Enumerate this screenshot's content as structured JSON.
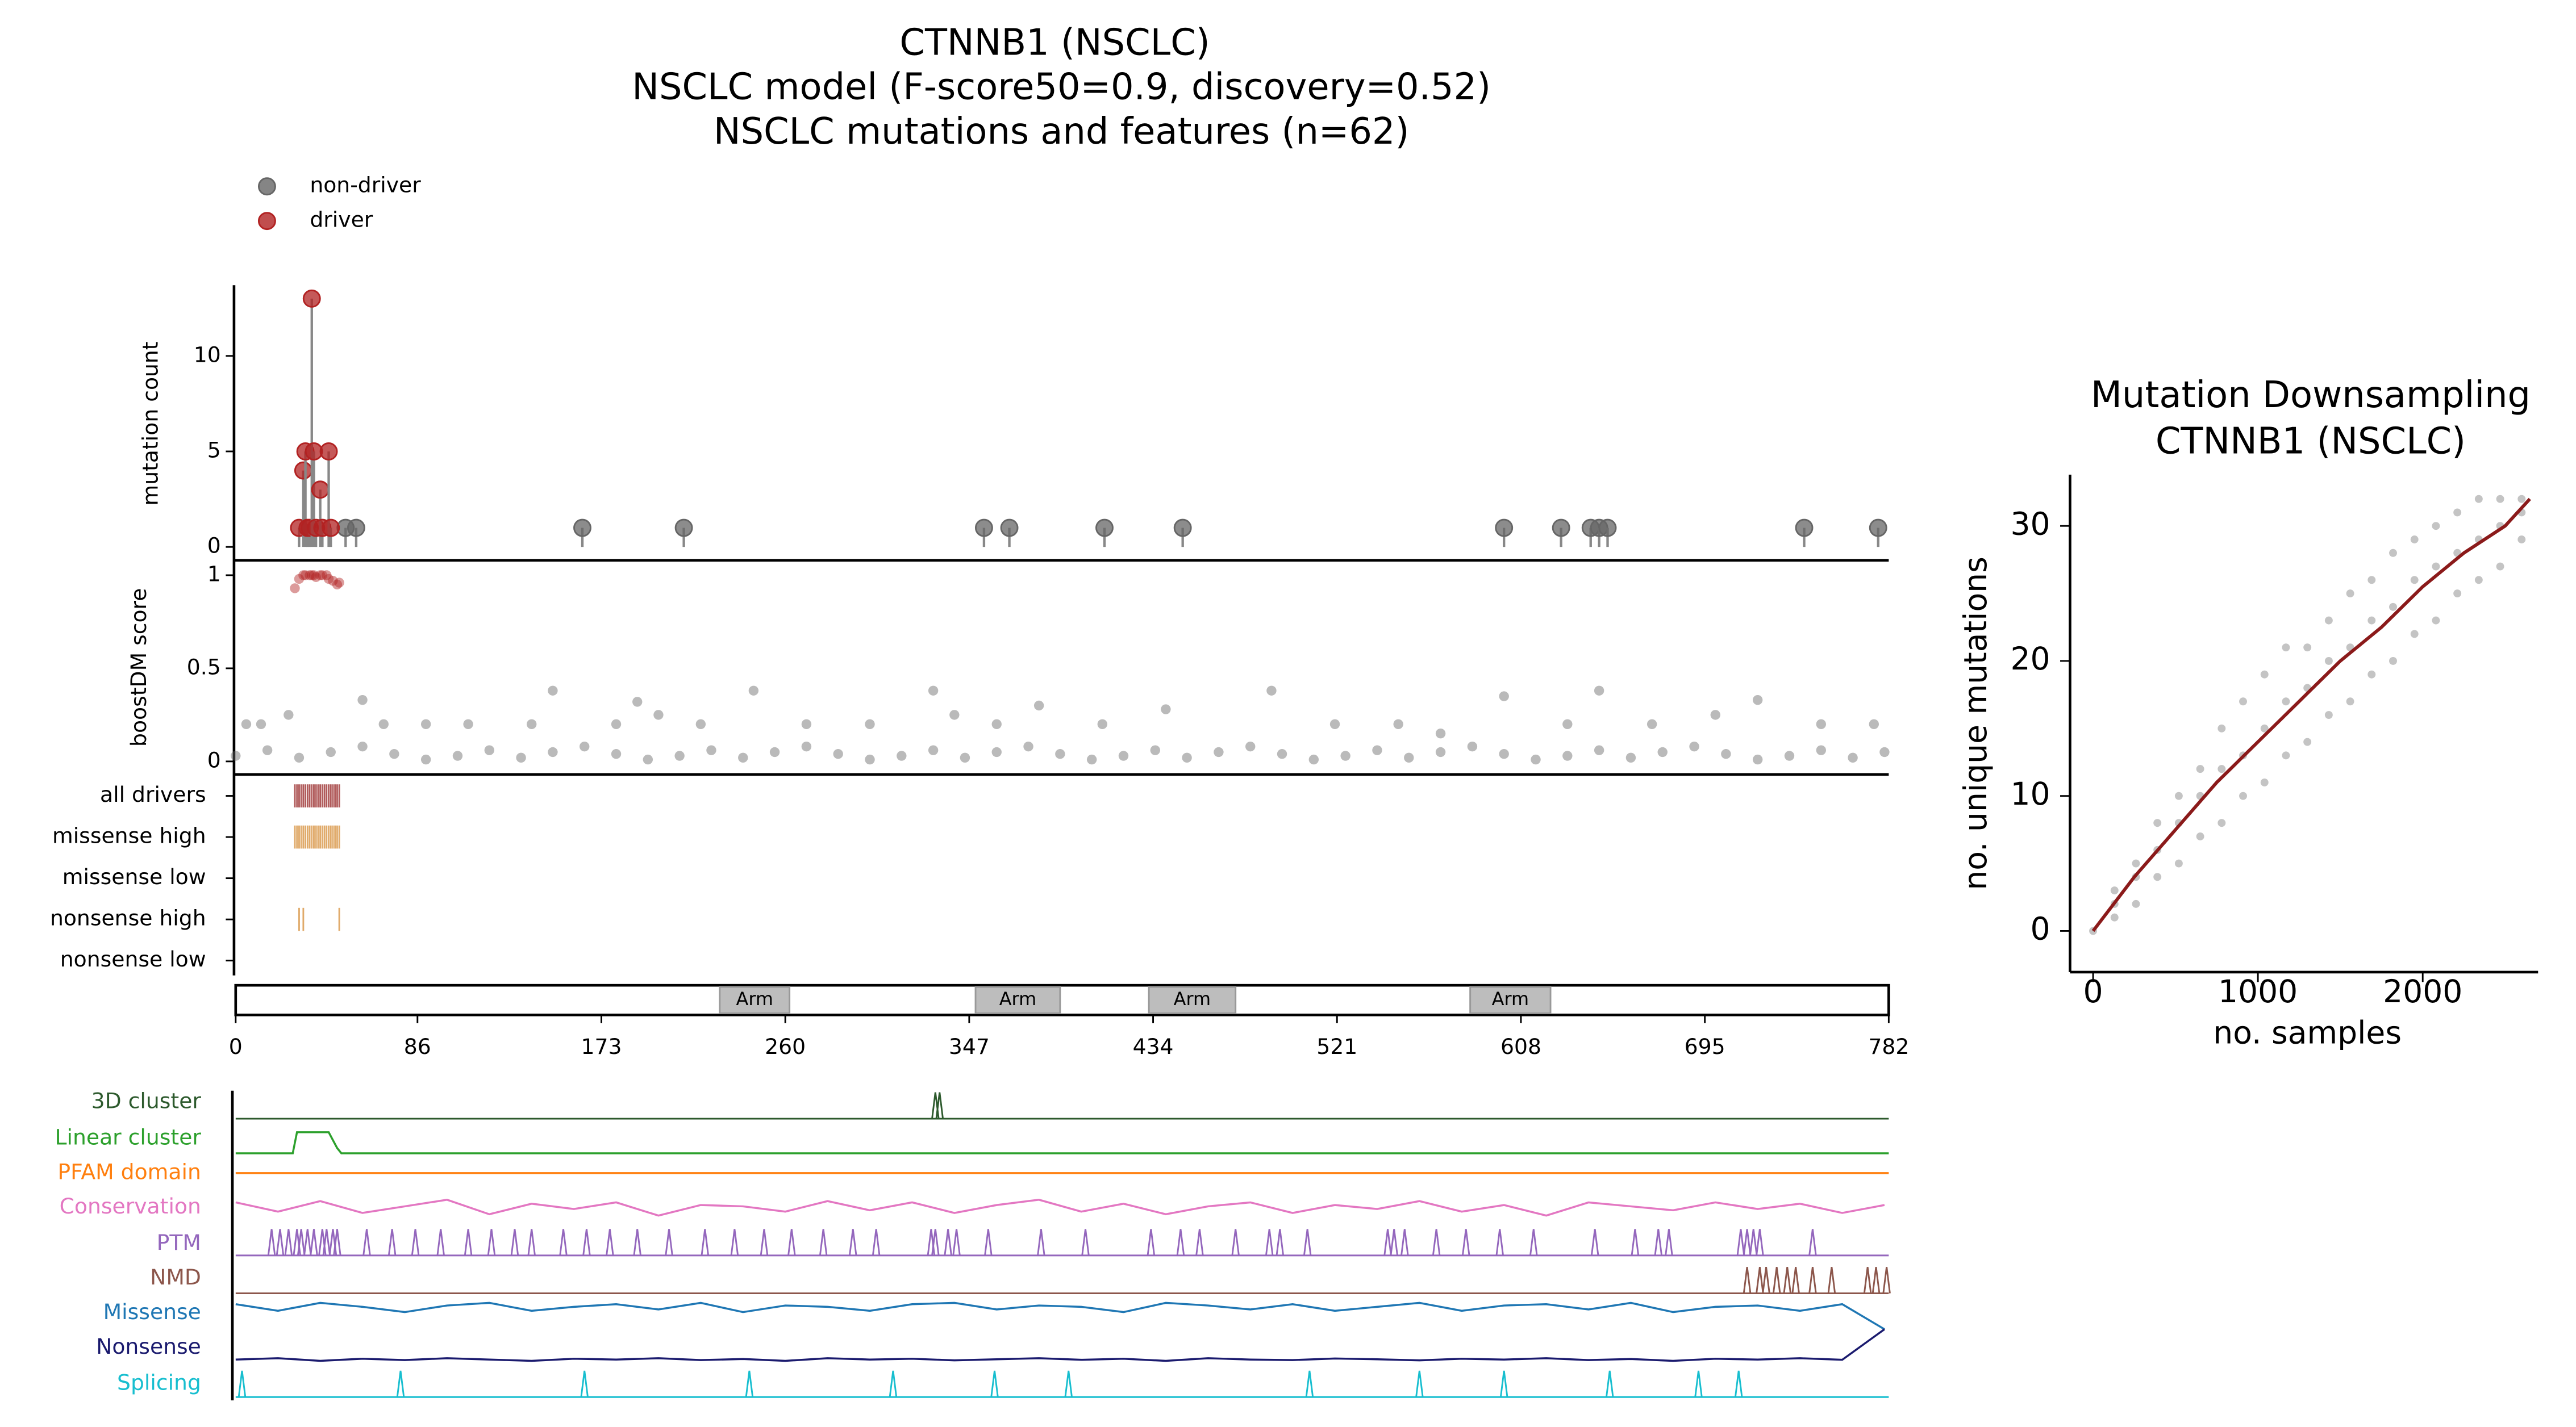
{
  "chart_data": [
    {
      "type": "lollipop",
      "title": [
        "CTNNB1 (NSCLC)",
        "NSCLC model (F-score50=0.9, discovery=0.52)",
        "NSCLC mutations and features (n=62)"
      ],
      "ylabel": "mutation count",
      "ylim": [
        -0.7,
        13.7
      ],
      "yticks": [
        0,
        5,
        10
      ],
      "series": [
        {
          "name": "non-driver",
          "color": "#666666",
          "x": [
            52,
            57,
            164,
            212,
            354,
            366,
            411,
            448,
            600,
            627,
            641,
            645,
            649,
            742,
            777
          ],
          "values": [
            1,
            1,
            1,
            1,
            1,
            1,
            1,
            1,
            1,
            1,
            1,
            1,
            1,
            1,
            1
          ]
        },
        {
          "name": "driver",
          "color": "#b22222",
          "x": [
            30,
            32,
            33,
            34,
            35,
            36,
            37,
            38,
            40,
            41,
            44,
            45
          ],
          "values": [
            1,
            4,
            5,
            1,
            1,
            13,
            5,
            1,
            3,
            1,
            5,
            1
          ]
        }
      ]
    },
    {
      "type": "scatter",
      "ylabel": "boostDM score",
      "ylim": [
        -0.07,
        1.08
      ],
      "yticks": [
        0,
        0.5,
        1
      ],
      "series": [
        {
          "color": "#666666",
          "x": [
            0,
            15,
            30,
            45,
            60,
            75,
            90,
            105,
            120,
            135,
            150,
            165,
            180,
            195,
            210,
            225,
            240,
            255,
            270,
            285,
            300,
            315,
            330,
            345,
            360,
            375,
            390,
            405,
            420,
            435,
            450,
            465,
            480,
            495,
            510,
            525,
            540,
            555,
            570,
            585,
            600,
            615,
            630,
            645,
            660,
            675,
            690,
            705,
            720,
            735,
            750,
            765,
            780
          ],
          "values": [
            0.03,
            0.06,
            0.02,
            0.05,
            0.08,
            0.04,
            0.01,
            0.03,
            0.06,
            0.02,
            0.05,
            0.08,
            0.04,
            0.01,
            0.03,
            0.06,
            0.02,
            0.05,
            0.08,
            0.04,
            0.01,
            0.03,
            0.06,
            0.02,
            0.05,
            0.08,
            0.04,
            0.01,
            0.03,
            0.06,
            0.02,
            0.05,
            0.08,
            0.04,
            0.01,
            0.03,
            0.06,
            0.02,
            0.05,
            0.08,
            0.04,
            0.01,
            0.03,
            0.06,
            0.02,
            0.05,
            0.08,
            0.04,
            0.01,
            0.03,
            0.06,
            0.02,
            0.05
          ]
        },
        {
          "color": "#666666",
          "x": [
            5,
            12,
            25,
            60,
            70,
            90,
            110,
            140,
            150,
            180,
            190,
            200,
            220,
            245,
            270,
            300,
            330,
            340,
            360,
            380,
            410,
            440,
            490,
            520,
            550,
            570,
            600,
            630,
            645,
            670,
            700,
            720,
            750,
            775
          ],
          "values": [
            0.2,
            0.2,
            0.25,
            0.33,
            0.2,
            0.2,
            0.2,
            0.2,
            0.38,
            0.2,
            0.32,
            0.25,
            0.2,
            0.38,
            0.2,
            0.2,
            0.38,
            0.25,
            0.2,
            0.3,
            0.2,
            0.28,
            0.38,
            0.2,
            0.2,
            0.15,
            0.35,
            0.2,
            0.38,
            0.2,
            0.25,
            0.33,
            0.2,
            0.2
          ]
        },
        {
          "color": "#b22222",
          "x": [
            28,
            30,
            32,
            33,
            35,
            36,
            37,
            38,
            40,
            41,
            43,
            44,
            46,
            48,
            49
          ],
          "values": [
            0.93,
            0.98,
            1,
            1,
            1,
            1,
            1,
            0.99,
            1,
            1,
            1,
            0.98,
            0.97,
            0.95,
            0.96
          ]
        }
      ]
    },
    {
      "type": "tracks",
      "categories": [
        "all drivers",
        "missense high",
        "missense low",
        "nonsense high",
        "nonsense low"
      ],
      "series": [
        {
          "color": "#b05a5a",
          "x": [
            28,
            29,
            30,
            31,
            32,
            33,
            34,
            35,
            36,
            37,
            38,
            39,
            40,
            41,
            42,
            43,
            44,
            45,
            46,
            47,
            48,
            49
          ]
        },
        {
          "color": "#e0aa6a",
          "x": [
            28,
            29,
            30,
            31,
            32,
            33,
            34,
            35,
            36,
            37,
            38,
            39,
            40,
            41,
            42,
            43,
            44,
            45,
            46,
            47,
            48,
            49
          ]
        },
        {
          "color": "#e0aa6a",
          "x": []
        },
        {
          "color": "#e0aa6a",
          "x": [
            30,
            32,
            49
          ]
        },
        {
          "color": "#e0aa6a",
          "x": []
        }
      ]
    },
    {
      "type": "domains",
      "xlim": [
        0,
        782
      ],
      "xticks": [
        0,
        86,
        173,
        260,
        347,
        434,
        521,
        608,
        695,
        782
      ],
      "domains": [
        {
          "label": "Arm",
          "start": 229,
          "end": 262
        },
        {
          "label": "Arm",
          "start": 350,
          "end": 390
        },
        {
          "label": "Arm",
          "start": 432,
          "end": 473
        },
        {
          "label": "Arm",
          "start": 584,
          "end": 622
        }
      ]
    },
    {
      "type": "features",
      "series": [
        {
          "name": "3D cluster",
          "color": "#2d5a2d",
          "peaks": [
            331,
            333
          ]
        },
        {
          "name": "Linear cluster",
          "color": "#2ca02c",
          "x": [
            0,
            27,
            29,
            42,
            44,
            48,
            50,
            782
          ],
          "values": [
            0,
            0,
            0.8,
            0.8,
            0.8,
            0.2,
            0,
            0
          ]
        },
        {
          "name": "PFAM domain",
          "color": "#ff7f0e",
          "x": [
            0,
            782
          ],
          "values": [
            0,
            0
          ]
        },
        {
          "name": "Conservation",
          "color": "#e377c2",
          "x": [
            0,
            20,
            40,
            60,
            80,
            100,
            120,
            140,
            160,
            180,
            200,
            220,
            240,
            260,
            280,
            300,
            320,
            340,
            360,
            380,
            400,
            420,
            440,
            460,
            480,
            500,
            520,
            540,
            560,
            580,
            600,
            620,
            640,
            660,
            680,
            700,
            720,
            740,
            760,
            780
          ],
          "values": [
            0.2,
            -0.15,
            0.25,
            -0.2,
            0.05,
            0.3,
            -0.25,
            0.15,
            -0.05,
            0.2,
            -0.3,
            0.1,
            0.05,
            -0.15,
            0.25,
            -0.1,
            0.2,
            -0.2,
            0.1,
            0.3,
            -0.15,
            0.15,
            -0.25,
            0.05,
            0.2,
            -0.2,
            0.1,
            -0.05,
            0.25,
            -0.15,
            0.1,
            -0.3,
            0.2,
            0.05,
            -0.1,
            0.2,
            -0.05,
            0.15,
            -0.2,
            0.1
          ]
        },
        {
          "name": "PTM",
          "color": "#9467bd",
          "peaks": [
            17,
            21,
            25,
            29,
            31,
            34,
            37,
            41,
            43,
            46,
            48,
            62,
            74,
            85,
            97,
            110,
            121,
            132,
            140,
            155,
            166,
            177,
            190,
            205,
            222,
            236,
            250,
            263,
            278,
            292,
            303,
            329,
            331,
            337,
            341,
            356,
            381,
            402,
            433,
            447,
            456,
            473,
            489,
            494,
            507,
            545,
            548,
            553,
            568,
            582,
            598,
            614,
            643,
            662,
            673,
            678,
            712,
            715,
            718,
            721,
            746
          ]
        },
        {
          "name": "NMD",
          "color": "#8c564b",
          "peaks": [
            715,
            721,
            724,
            729,
            734,
            738,
            746,
            755,
            772,
            776,
            781
          ]
        },
        {
          "name": "Missense",
          "color": "#1f77b4",
          "x": [
            0,
            20,
            40,
            60,
            80,
            100,
            120,
            140,
            160,
            180,
            200,
            220,
            240,
            260,
            280,
            300,
            320,
            340,
            360,
            380,
            400,
            420,
            440,
            460,
            480,
            500,
            520,
            540,
            560,
            580,
            600,
            620,
            640,
            660,
            680,
            700,
            720,
            740,
            760,
            780
          ],
          "values": [
            0.15,
            -0.1,
            0.2,
            0.05,
            -0.15,
            0.1,
            0.2,
            -0.1,
            0.05,
            0.15,
            -0.05,
            0.2,
            -0.15,
            0.1,
            0.05,
            -0.1,
            0.15,
            0.2,
            -0.05,
            0.1,
            0.05,
            -0.15,
            0.2,
            0.1,
            -0.05,
            0.15,
            -0.1,
            0.05,
            0.2,
            -0.1,
            0.1,
            0.15,
            -0.05,
            0.2,
            -0.15,
            0.05,
            0.1,
            -0.1,
            0.15,
            -0.8
          ]
        },
        {
          "name": "Nonsense",
          "color": "#1a1a6e",
          "x": [
            0,
            20,
            40,
            60,
            80,
            100,
            120,
            140,
            160,
            180,
            200,
            220,
            240,
            260,
            280,
            300,
            320,
            340,
            360,
            380,
            400,
            420,
            440,
            460,
            480,
            500,
            520,
            540,
            560,
            580,
            600,
            620,
            640,
            660,
            680,
            700,
            720,
            740,
            760,
            780
          ],
          "values": [
            0.05,
            0.1,
            0,
            0.08,
            0.03,
            0.1,
            0.05,
            0,
            0.08,
            0.05,
            0.1,
            0.03,
            0.07,
            0,
            0.1,
            0.05,
            0.08,
            0.02,
            0.06,
            0.1,
            0.04,
            0.08,
            0,
            0.1,
            0.05,
            0.03,
            0.09,
            0.06,
            0.02,
            0.08,
            0.05,
            0.1,
            0.03,
            0.07,
            0,
            0.08,
            0.05,
            0.1,
            0.04,
            1.2
          ]
        },
        {
          "name": "Splicing",
          "color": "#17becf",
          "peaks": [
            3,
            78,
            165,
            243,
            311,
            359,
            394,
            508,
            560,
            600,
            650,
            692,
            711
          ]
        }
      ]
    },
    {
      "type": "line-scatter",
      "title": [
        "Mutation Downsampling",
        "CTNNB1 (NSCLC)"
      ],
      "xlabel": "no. samples",
      "ylabel": "no. unique mutations",
      "xlim": [
        -140,
        2700
      ],
      "ylim": [
        -3.05,
        33.8
      ],
      "xticks": [
        0,
        1000,
        2000
      ],
      "yticks": [
        0,
        10,
        20,
        30
      ],
      "series": [
        {
          "color": "#555555",
          "x": [
            0,
            130,
            130,
            130,
            260,
            260,
            260,
            390,
            390,
            390,
            520,
            520,
            520,
            650,
            650,
            650,
            780,
            780,
            780,
            910,
            910,
            910,
            1040,
            1040,
            1040,
            1170,
            1170,
            1170,
            1300,
            1300,
            1300,
            1430,
            1430,
            1430,
            1560,
            1560,
            1560,
            1690,
            1690,
            1690,
            1820,
            1820,
            1820,
            1950,
            1950,
            1950,
            2080,
            2080,
            2080,
            2210,
            2210,
            2210,
            2340,
            2340,
            2340,
            2470,
            2470,
            2470,
            2600,
            2600,
            2600
          ],
          "values": [
            0,
            1,
            2,
            3,
            2,
            4,
            5,
            4,
            6,
            8,
            5,
            8,
            10,
            7,
            10,
            12,
            8,
            12,
            15,
            10,
            13,
            17,
            11,
            15,
            19,
            13,
            17,
            21,
            14,
            18,
            21,
            16,
            20,
            23,
            17,
            21,
            25,
            19,
            23,
            26,
            20,
            24,
            28,
            22,
            26,
            29,
            23,
            27,
            30,
            25,
            28,
            31,
            26,
            29,
            32,
            27,
            30,
            32,
            29,
            31,
            32
          ]
        },
        {
          "color": "#8b1a1a",
          "x": [
            0,
            250,
            500,
            750,
            1000,
            1250,
            1500,
            1750,
            2000,
            2250,
            2500,
            2650
          ],
          "values": [
            0,
            4,
            7.5,
            11,
            14,
            17,
            20,
            22.5,
            25.5,
            28,
            30,
            32
          ]
        }
      ]
    }
  ]
}
